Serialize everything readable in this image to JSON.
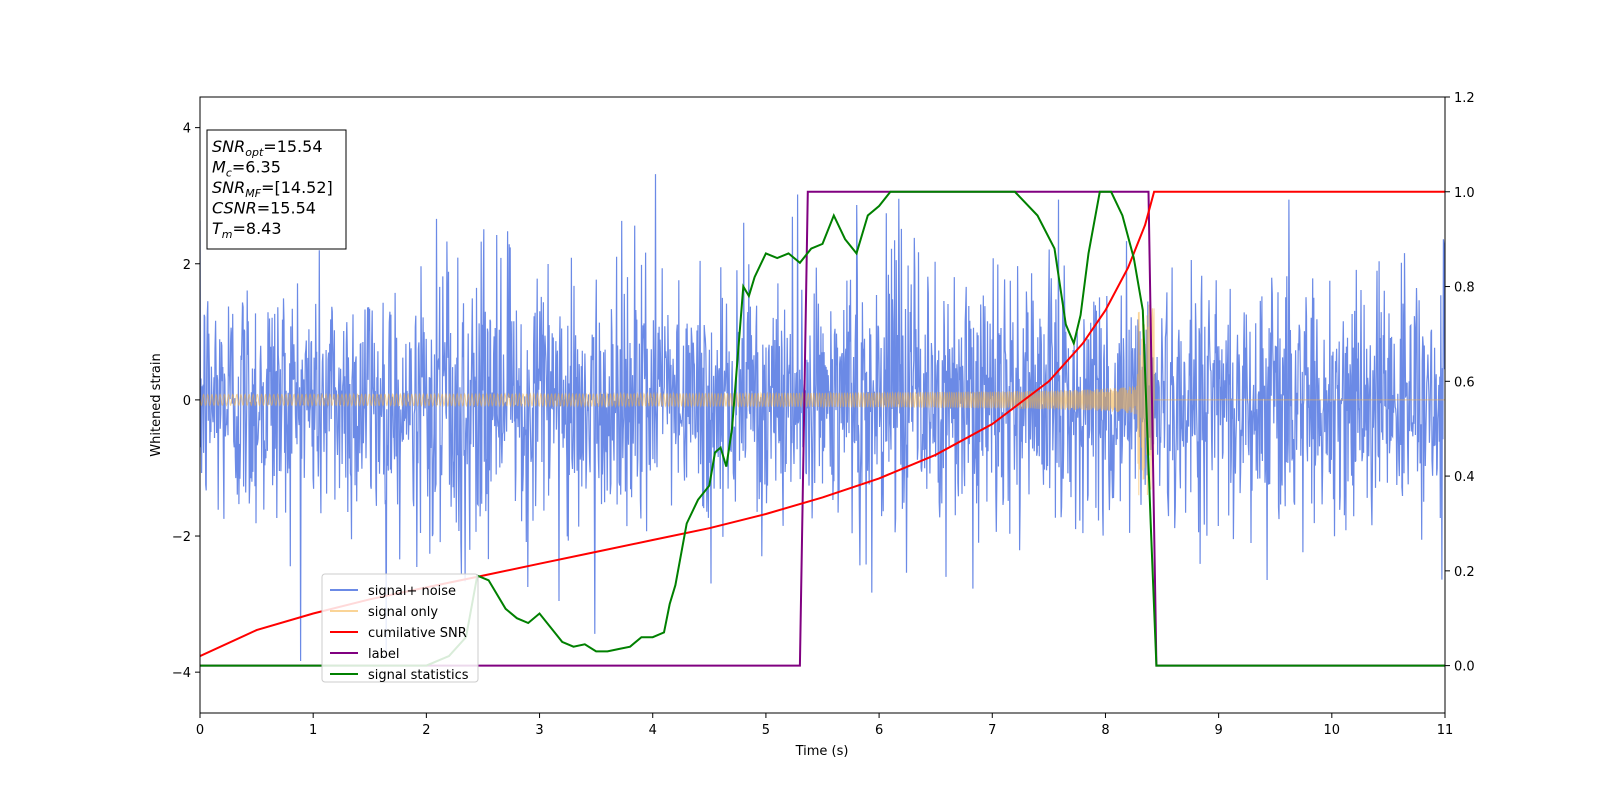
{
  "chart_data": {
    "type": "line",
    "xlabel": "Time (s)",
    "ylabel": "Whitened strain",
    "xlim": [
      0,
      11
    ],
    "ylim": [
      -4.6,
      4.45
    ],
    "y2lim": [
      -0.1,
      1.2
    ],
    "x_ticks": [
      "0",
      "1",
      "2",
      "3",
      "4",
      "5",
      "6",
      "7",
      "8",
      "9",
      "10",
      "11"
    ],
    "y_ticks": [
      "−4",
      "−2",
      "0",
      "2",
      "4"
    ],
    "y2_ticks": [
      "0.0",
      "0.2",
      "0.4",
      "0.6",
      "0.8",
      "1.0",
      "1.2"
    ],
    "legend_position": "lower-left",
    "annotations": {
      "lines": [
        {
          "symbol": "SNR",
          "subscript": "opt",
          "value": "=15.54"
        },
        {
          "symbol": "M",
          "subscript": "c",
          "value": "=6.35"
        },
        {
          "symbol": "SNR",
          "subscript": "MF",
          "value": "=[14.52]"
        },
        {
          "symbol": "CSNR",
          "subscript": "",
          "value": "=15.54"
        },
        {
          "symbol": "T",
          "subscript": "m",
          "value": "=8.43"
        }
      ]
    },
    "series": [
      {
        "name": "signal+ noise",
        "axis": "left",
        "color": "#6b8ae6",
        "description_level": "noise with amplitude ~1, peaks up to ~3.9",
        "noise_std": 0.95,
        "noise_max": 3.9
      },
      {
        "name": "signal only",
        "axis": "left",
        "color": "#f5b041",
        "chirp": {
          "t_start": 0,
          "t_merge": 8.43,
          "amp_start": 0.08,
          "amp_end": 1.4
        }
      },
      {
        "name": "cumilative SNR",
        "axis": "right",
        "color": "#ff0000",
        "x": [
          0,
          0.5,
          1,
          1.5,
          2,
          2.5,
          3,
          3.5,
          4,
          4.5,
          5,
          5.5,
          6,
          6.5,
          7,
          7.5,
          7.8,
          8.0,
          8.2,
          8.35,
          8.43,
          11
        ],
        "y": [
          0.02,
          0.075,
          0.11,
          0.14,
          0.165,
          0.19,
          0.215,
          0.24,
          0.265,
          0.29,
          0.32,
          0.355,
          0.395,
          0.445,
          0.51,
          0.6,
          0.68,
          0.75,
          0.84,
          0.93,
          1.0,
          1.0
        ]
      },
      {
        "name": "label",
        "axis": "right",
        "color": "#800080",
        "x": [
          0,
          5.3,
          5.37,
          8.38,
          8.45,
          11
        ],
        "y": [
          0.0,
          0.0,
          1.0,
          1.0,
          0.0,
          0.0
        ]
      },
      {
        "name": "signal statistics",
        "axis": "right",
        "color": "#008000",
        "x": [
          0,
          1,
          2,
          2.2,
          2.35,
          2.45,
          2.55,
          2.7,
          2.8,
          2.9,
          3.0,
          3.1,
          3.2,
          3.3,
          3.4,
          3.5,
          3.6,
          3.7,
          3.8,
          3.9,
          4.0,
          4.1,
          4.15,
          4.2,
          4.3,
          4.4,
          4.5,
          4.55,
          4.6,
          4.65,
          4.7,
          4.8,
          4.85,
          4.9,
          5.0,
          5.1,
          5.2,
          5.3,
          5.4,
          5.5,
          5.6,
          5.7,
          5.8,
          5.9,
          6.0,
          6.1,
          6.2,
          6.5,
          7.0,
          7.2,
          7.4,
          7.55,
          7.65,
          7.72,
          7.78,
          7.85,
          7.95,
          8.05,
          8.15,
          8.25,
          8.33,
          8.4,
          8.45,
          8.5,
          11
        ],
        "y": [
          0.0,
          0.0,
          0.0,
          0.02,
          0.06,
          0.19,
          0.18,
          0.12,
          0.1,
          0.09,
          0.11,
          0.08,
          0.05,
          0.04,
          0.045,
          0.03,
          0.03,
          0.035,
          0.04,
          0.06,
          0.06,
          0.07,
          0.13,
          0.17,
          0.3,
          0.35,
          0.38,
          0.45,
          0.46,
          0.42,
          0.5,
          0.8,
          0.78,
          0.82,
          0.87,
          0.86,
          0.87,
          0.85,
          0.88,
          0.89,
          0.95,
          0.9,
          0.87,
          0.95,
          0.97,
          1.0,
          1.0,
          1.0,
          1.0,
          1.0,
          0.95,
          0.88,
          0.72,
          0.68,
          0.74,
          0.87,
          1.0,
          1.0,
          0.95,
          0.86,
          0.75,
          0.3,
          0.0,
          0.0,
          0.0
        ]
      }
    ]
  }
}
